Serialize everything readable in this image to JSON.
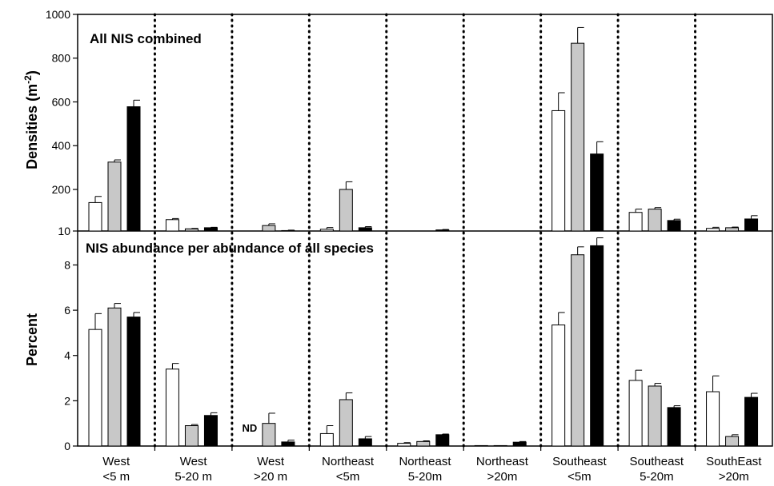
{
  "chart_data": [
    {
      "type": "bar",
      "panel": "top",
      "title": "All NIS combined",
      "ylabel": "Densities (m-2)",
      "ylabel_main": "Densities (m",
      "ylabel_sup": "-2",
      "ylabel_close": ")",
      "ylim": [
        10,
        1000
      ],
      "yticks": [
        "10",
        "200",
        "400",
        "600",
        "800",
        "1000"
      ],
      "categories": [
        [
          "West",
          "<5 m"
        ],
        [
          "West",
          "5-20 m"
        ],
        [
          "West",
          ">20 m"
        ],
        [
          "Northeast",
          "<5m"
        ],
        [
          "Northeast",
          "5-20m"
        ],
        [
          "Northeast",
          ">20m"
        ],
        [
          "Southeast",
          "<5m"
        ],
        [
          "Southeast",
          "5-20m"
        ],
        [
          "SouthEast",
          ">20m"
        ]
      ],
      "series": [
        {
          "color": "#ffffff",
          "values": [
            140,
            62,
            0,
            18,
            2,
            0,
            560,
            95,
            22
          ],
          "errors": [
            28,
            5,
            0,
            8,
            1,
            0,
            82,
            15,
            5
          ]
        },
        {
          "color": "#c8c8c8",
          "values": [
            325,
            20,
            35,
            200,
            5,
            0,
            868,
            110,
            25
          ],
          "errors": [
            10,
            2,
            8,
            35,
            2,
            0,
            72,
            7,
            3
          ]
        },
        {
          "color": "#000000",
          "values": [
            578,
            25,
            12,
            25,
            15,
            3,
            362,
            58,
            65
          ],
          "errors": [
            30,
            2,
            2,
            5,
            2,
            2,
            56,
            6,
            15
          ]
        }
      ]
    },
    {
      "type": "bar",
      "panel": "bottom",
      "title": "NIS abundance per abundance of all species",
      "ylabel": "Percent",
      "ylim": [
        0,
        9.5
      ],
      "yticks": [
        "0",
        "2",
        "4",
        "6",
        "8"
      ],
      "annotations": [
        {
          "text": "ND",
          "category_index": 2,
          "series_index": 0
        }
      ],
      "series": [
        {
          "color": "#ffffff",
          "values": [
            5.15,
            3.4,
            null,
            0.55,
            0.12,
            0.02,
            5.35,
            2.9,
            2.4
          ],
          "errors": [
            0.7,
            0.25,
            0,
            0.35,
            0.03,
            0,
            0.55,
            0.45,
            0.7
          ]
        },
        {
          "color": "#c8c8c8",
          "values": [
            6.1,
            0.9,
            1.0,
            2.05,
            0.2,
            0.02,
            8.45,
            2.65,
            0.42
          ],
          "errors": [
            0.2,
            0.05,
            0.45,
            0.3,
            0.03,
            0,
            0.35,
            0.12,
            0.08
          ]
        },
        {
          "color": "#000000",
          "values": [
            5.7,
            1.35,
            0.18,
            0.32,
            0.5,
            0.17,
            8.85,
            1.7,
            2.15
          ],
          "errors": [
            0.2,
            0.12,
            0.08,
            0.1,
            0.03,
            0.03,
            0.35,
            0.08,
            0.18
          ]
        }
      ]
    }
  ]
}
